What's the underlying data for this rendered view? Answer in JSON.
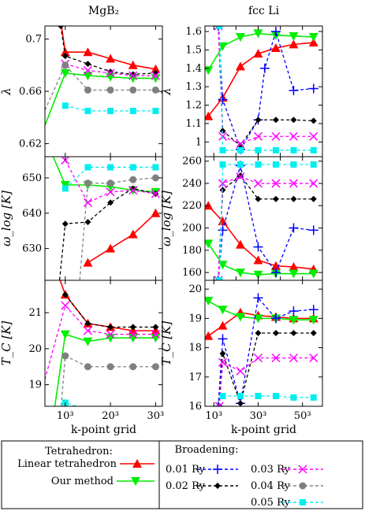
{
  "legend": {
    "tetra_title": "Tetrahedron:",
    "broad_title": "Broadening:",
    "entries": [
      {
        "label": "Linear tetrahedron",
        "color": "#ff0000",
        "marker": "triangle-up",
        "dash": false
      },
      {
        "label": "Our method",
        "color": "#00ee00",
        "marker": "triangle-down",
        "dash": false
      },
      {
        "label": "0.01 Ry",
        "color": "#0000ff",
        "marker": "plus",
        "dash": true
      },
      {
        "label": "0.02 Ry",
        "color": "#000000",
        "marker": "diamond",
        "dash": true
      },
      {
        "label": "0.03 Ry",
        "color": "#ff00ff",
        "marker": "cross",
        "dash": true
      },
      {
        "label": "0.04 Ry",
        "color": "#808080",
        "marker": "circle",
        "dash": true
      },
      {
        "label": "0.05 Ry",
        "color": "#00eeee",
        "marker": "square",
        "dash": true
      }
    ]
  },
  "chart_data": [
    {
      "type": "line",
      "column_title": "MgB₂",
      "ylabel": "λ",
      "yticks": [
        0.62,
        0.66,
        0.7
      ],
      "ylim": [
        0.61,
        0.71
      ],
      "xlim": [
        0.55,
        3.15
      ],
      "series": [
        {
          "name": "Linear tetrahedron",
          "x": [
            0.62,
            1,
            1.5,
            2,
            2.5,
            3
          ],
          "y": [
            0.78,
            0.69,
            0.69,
            0.685,
            0.68,
            0.677
          ]
        },
        {
          "name": "Our method",
          "x": [
            0.45,
            1,
            1.5,
            2,
            2.5,
            3
          ],
          "y": [
            0.625,
            0.674,
            0.672,
            0.671,
            0.67,
            0.67
          ]
        },
        {
          "name": "0.02 Ry",
          "x": [
            0.9,
            1,
            1.5,
            2,
            2.5,
            3
          ],
          "y": [
            0.71,
            0.687,
            0.681,
            0.675,
            0.673,
            0.674
          ]
        },
        {
          "name": "0.03 Ry",
          "x": [
            1,
            1.5,
            2,
            2.5,
            3
          ],
          "y": [
            0.681,
            0.676,
            0.674,
            0.672,
            0.672
          ]
        },
        {
          "name": "0.04 Ry",
          "x": [
            0.45,
            1,
            1.5,
            2,
            2.5,
            3
          ],
          "y": [
            0.638,
            0.68,
            0.661,
            0.661,
            0.661,
            0.661
          ]
        },
        {
          "name": "0.05 Ry",
          "x": [
            1,
            1.5,
            2,
            2.5,
            3
          ],
          "y": [
            0.649,
            0.645,
            0.645,
            0.645,
            0.645
          ]
        }
      ]
    },
    {
      "type": "line",
      "column_title": "fcc Li",
      "ylabel": "λ",
      "yticks": [
        1,
        1.1,
        1.2,
        1.3,
        1.4,
        1.5,
        1.6
      ],
      "ylim": [
        0.92,
        1.63
      ],
      "xlim": [
        0.6,
        5.9
      ],
      "series": [
        {
          "name": "Linear tetrahedron",
          "x": [
            0.75,
            1.4,
            2.2,
            3,
            3.8,
            4.6,
            5.5
          ],
          "y": [
            1.14,
            1.24,
            1.41,
            1.48,
            1.51,
            1.53,
            1.54
          ]
        },
        {
          "name": "Our method",
          "x": [
            0.75,
            1.4,
            2.2,
            3,
            3.8,
            4.6,
            5.5
          ],
          "y": [
            1.39,
            1.52,
            1.57,
            1.59,
            1.58,
            1.575,
            1.57
          ]
        },
        {
          "name": "0.01 Ry",
          "x": [
            1.2,
            1.4,
            2.2,
            3,
            3.3,
            3.8,
            4.6,
            5.5
          ],
          "y": [
            1.63,
            1.23,
            0.96,
            1.12,
            1.4,
            1.6,
            1.28,
            1.29
          ]
        },
        {
          "name": "0.02 Ry",
          "x": [
            1.2,
            1.4,
            2.2,
            3,
            3.8,
            4.6,
            5.5
          ],
          "y": [
            1.63,
            1.06,
            0.98,
            1.12,
            1.12,
            1.12,
            1.115
          ]
        },
        {
          "name": "0.03 Ry",
          "x": [
            1.2,
            1.4,
            2.2,
            3,
            3.8,
            4.6,
            5.5
          ],
          "y": [
            1.63,
            1.03,
            0.99,
            1.03,
            1.03,
            1.03,
            1.03
          ]
        },
        {
          "name": "0.05 Ry",
          "x": [
            1.25,
            1.4,
            2.2,
            3,
            3.8,
            4.6,
            5.5
          ],
          "y": [
            1.63,
            0.955,
            0.955,
            0.955,
            0.955,
            0.955,
            0.955
          ]
        }
      ]
    },
    {
      "type": "line",
      "column_title": "",
      "ylabel": "ω_log [K]",
      "yticks": [
        630,
        640,
        650
      ],
      "ylim": [
        621,
        656
      ],
      "xlim": [
        0.55,
        3.15
      ],
      "series": [
        {
          "name": "Linear tetrahedron",
          "x": [
            1.5,
            2,
            2.5,
            3
          ],
          "y": [
            626,
            630,
            634,
            640
          ]
        },
        {
          "name": "Our method",
          "x": [
            0.6,
            1,
            1.5,
            2,
            2.5,
            3
          ],
          "y": [
            660,
            648,
            648,
            647.5,
            646.5,
            646
          ]
        },
        {
          "name": "0.02 Ry",
          "x": [
            0.85,
            1,
            1.5,
            2,
            2.5,
            3
          ],
          "y": [
            618,
            637,
            637.5,
            643,
            647,
            645.5
          ]
        },
        {
          "name": "0.03 Ry",
          "x": [
            1,
            1.5,
            2,
            2.5,
            3
          ],
          "y": [
            655,
            643,
            646,
            646.5,
            645.5
          ]
        },
        {
          "name": "0.04 Ry",
          "x": [
            1.3,
            1.5,
            2,
            2.5,
            3
          ],
          "y": [
            618,
            648.5,
            648.5,
            649.5,
            650
          ]
        },
        {
          "name": "0.05 Ry",
          "x": [
            1,
            1.5,
            2,
            2.5,
            3
          ],
          "y": [
            647,
            653,
            653,
            653,
            653
          ]
        }
      ]
    },
    {
      "type": "line",
      "column_title": "",
      "ylabel": "ω_log [K]",
      "yticks": [
        160,
        180,
        200,
        220,
        240,
        260
      ],
      "ylim": [
        153,
        264
      ],
      "xlim": [
        0.6,
        5.9
      ],
      "series": [
        {
          "name": "Linear tetrahedron",
          "x": [
            0.75,
            1.4,
            2.2,
            3,
            3.8,
            4.6,
            5.5
          ],
          "y": [
            220,
            206,
            185,
            171,
            166,
            165,
            163
          ]
        },
        {
          "name": "Our method",
          "x": [
            0.75,
            1.4,
            2.2,
            3,
            3.8,
            4.6,
            5.5
          ],
          "y": [
            186,
            167,
            160,
            158,
            159,
            159,
            159
          ]
        },
        {
          "name": "0.01 Ry",
          "x": [
            1.2,
            1.4,
            2.2,
            3,
            3.8,
            4.6,
            5.5
          ],
          "y": [
            153,
            198,
            256,
            183,
            160,
            200,
            198
          ]
        },
        {
          "name": "0.02 Ry",
          "x": [
            1.2,
            1.4,
            2.2,
            3,
            3.8,
            4.6,
            5.5
          ],
          "y": [
            153,
            234,
            247,
            226,
            226,
            226,
            226
          ]
        },
        {
          "name": "0.03 Ry",
          "x": [
            1.2,
            1.4,
            2.2,
            3,
            3.8,
            4.6,
            5.5
          ],
          "y": [
            153,
            240,
            246,
            240,
            240,
            240,
            240
          ]
        },
        {
          "name": "0.05 Ry",
          "x": [
            1.25,
            1.4,
            2.2,
            3,
            3.8,
            4.6,
            5.5
          ],
          "y": [
            153,
            257,
            257,
            257,
            257,
            257,
            257
          ]
        }
      ]
    },
    {
      "type": "line",
      "column_title": "",
      "ylabel": "T_C [K]",
      "xlabel": "k-point grid",
      "xticks": [
        {
          "v": 1,
          "l": "10³"
        },
        {
          "v": 2,
          "l": "20³"
        },
        {
          "v": 3,
          "l": "30³"
        }
      ],
      "yticks": [
        19,
        20,
        21
      ],
      "ylim": [
        18.4,
        21.9
      ],
      "xlim": [
        0.55,
        3.15
      ],
      "series": [
        {
          "name": "Linear tetrahedron",
          "x": [
            0.8,
            1,
            1.5,
            2,
            2.5,
            3
          ],
          "y": [
            22.2,
            21.5,
            20.7,
            20.6,
            20.5,
            20.5
          ]
        },
        {
          "name": "Our method",
          "x": [
            0.7,
            1,
            1.5,
            2,
            2.5,
            3
          ],
          "y": [
            17.8,
            20.4,
            20.2,
            20.3,
            20.3,
            20.3
          ]
        },
        {
          "name": "0.02 Ry",
          "x": [
            1,
            1.5,
            2,
            2.5,
            3
          ],
          "y": [
            21.5,
            20.7,
            20.6,
            20.6,
            20.6
          ]
        },
        {
          "name": "0.03 Ry",
          "x": [
            0.45,
            1,
            1.5,
            2,
            2.5,
            3
          ],
          "y": [
            18.7,
            21.2,
            20.5,
            20.4,
            20.4,
            20.4
          ]
        },
        {
          "name": "0.04 Ry",
          "x": [
            0.85,
            1,
            1.5,
            2,
            2.5,
            3
          ],
          "y": [
            17.5,
            19.8,
            19.5,
            19.5,
            19.5,
            19.5
          ]
        },
        {
          "name": "0.05 Ry",
          "x": [
            0.9,
            1,
            1.5,
            2,
            2.5,
            3
          ],
          "y": [
            17.2,
            18.5,
            18.3,
            18.3,
            18.3,
            18.3
          ]
        }
      ]
    },
    {
      "type": "line",
      "column_title": "",
      "ylabel": "T_C [K]",
      "xlabel": "k-point grid",
      "xticks": [
        {
          "v": 1,
          "l": "10³"
        },
        {
          "v": 3,
          "l": "30³"
        },
        {
          "v": 5,
          "l": "50³"
        }
      ],
      "yticks": [
        16,
        17,
        18,
        19,
        20
      ],
      "ylim": [
        16,
        20.3
      ],
      "xlim": [
        0.6,
        5.9
      ],
      "series": [
        {
          "name": "Linear tetrahedron",
          "x": [
            0.75,
            1.4,
            2.2,
            3,
            3.8,
            4.6,
            5.5
          ],
          "y": [
            18.4,
            18.75,
            19.2,
            19.1,
            19.05,
            19.0,
            19.0
          ]
        },
        {
          "name": "Our method",
          "x": [
            0.75,
            1.4,
            2.2,
            3,
            3.8,
            4.6,
            5.5
          ],
          "y": [
            19.6,
            19.3,
            19.05,
            19.0,
            19.0,
            18.95,
            18.95
          ]
        },
        {
          "name": "0.01 Ry",
          "x": [
            1.2,
            1.4,
            2.2,
            3,
            3.8,
            4.6,
            5.5
          ],
          "y": [
            16.0,
            18.3,
            16.1,
            19.7,
            19.0,
            19.25,
            19.3
          ]
        },
        {
          "name": "0.02 Ry",
          "x": [
            1.25,
            1.4,
            2.2,
            3,
            3.8,
            4.6,
            5.5
          ],
          "y": [
            16.0,
            17.8,
            16.1,
            18.5,
            18.5,
            18.5,
            18.5
          ]
        },
        {
          "name": "0.03 Ry",
          "x": [
            1.25,
            1.4,
            2.2,
            3,
            3.8,
            4.6,
            5.5
          ],
          "y": [
            16.0,
            17.5,
            17.2,
            17.65,
            17.65,
            17.65,
            17.65
          ]
        },
        {
          "name": "0.05 Ry",
          "x": [
            1.4,
            2.2,
            3,
            3.8,
            4.6,
            5.5
          ],
          "y": [
            16.35,
            16.35,
            16.35,
            16.35,
            16.3,
            16.3
          ]
        }
      ]
    }
  ]
}
